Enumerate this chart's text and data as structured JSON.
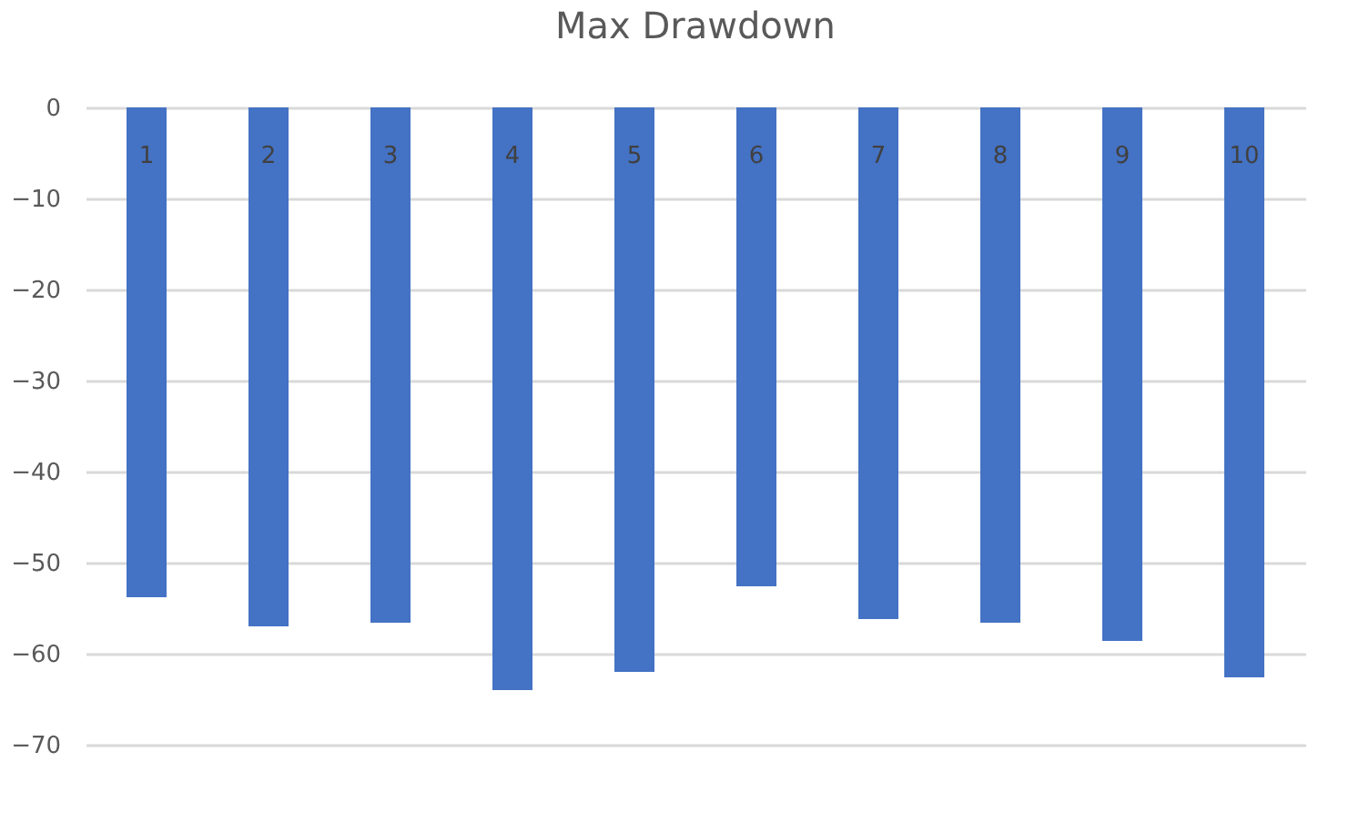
{
  "chart_data": {
    "type": "bar",
    "title": "Max Drawdown",
    "categories": [
      "1",
      "2",
      "3",
      "4",
      "5",
      "6",
      "7",
      "8",
      "9",
      "10"
    ],
    "values": [
      -53.8,
      -57.0,
      -56.6,
      -64.0,
      -62.0,
      -52.6,
      -56.2,
      -56.6,
      -58.6,
      -62.6
    ],
    "color": "#4472c4",
    "ylim": [
      -70,
      0
    ],
    "yticks": [
      0,
      -10,
      -20,
      -30,
      -40,
      -50,
      -60,
      -70
    ],
    "grid": "y"
  }
}
